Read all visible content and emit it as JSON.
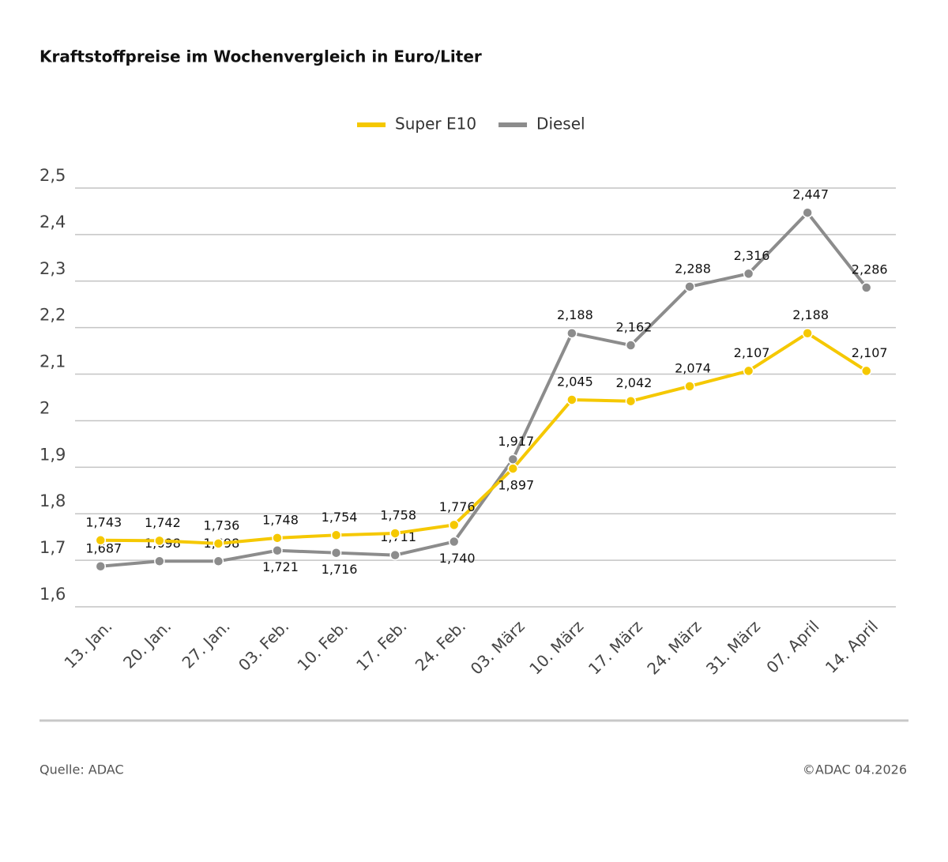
{
  "chart_data": {
    "type": "line",
    "title": "Kraftstoffpreise im Wochenvergleich in Euro/Liter",
    "categories": [
      "13. Jan.",
      "20. Jan.",
      "27. Jan.",
      "03. Feb.",
      "10. Feb.",
      "17. Feb.",
      "24. Feb.",
      "03. März",
      "10. März",
      "17. März",
      "24. März",
      "31. März",
      "07. April",
      "14. April"
    ],
    "series": [
      {
        "name": "Super E10",
        "color": "#f5c800",
        "values": [
          1.743,
          1.742,
          1.736,
          1.748,
          1.754,
          1.758,
          1.776,
          1.897,
          2.045,
          2.042,
          2.074,
          2.107,
          2.188,
          2.107
        ],
        "value_labels": [
          "1,743",
          "1,742",
          "1,736",
          "1,748",
          "1,754",
          "1,758",
          "1,776",
          "1,897",
          "2,045",
          "2,042",
          "2,074",
          "2,107",
          "2,188",
          "2,107"
        ]
      },
      {
        "name": "Diesel",
        "color": "#8c8c8c",
        "values": [
          1.687,
          1.698,
          1.698,
          1.721,
          1.716,
          1.711,
          1.74,
          1.917,
          2.188,
          2.162,
          2.288,
          2.316,
          2.447,
          2.286
        ],
        "value_labels": [
          "1,687",
          "1,698",
          "1,698",
          "1,721",
          "1,716",
          "1,711",
          "1,740",
          "1,917",
          "2,188",
          "2,162",
          "2,288",
          "2,316",
          "2,447",
          "2,286"
        ]
      }
    ],
    "ylim": [
      1.6,
      2.5
    ],
    "yticks": [
      {
        "value": 1.6,
        "label": "1,6"
      },
      {
        "value": 1.7,
        "label": "1,7"
      },
      {
        "value": 1.8,
        "label": "1,8"
      },
      {
        "value": 1.9,
        "label": "1,9"
      },
      2,
      {
        "value": 2.1,
        "label": "2,1"
      },
      {
        "value": 2.2,
        "label": "2,2"
      },
      {
        "value": 2.3,
        "label": "2,3"
      },
      {
        "value": 2.4,
        "label": "2,4"
      },
      {
        "value": 2.5,
        "label": "2,5"
      }
    ],
    "grid": true,
    "legend": "top",
    "source": "Quelle: ADAC",
    "copyright": "©ADAC 04.2026"
  }
}
